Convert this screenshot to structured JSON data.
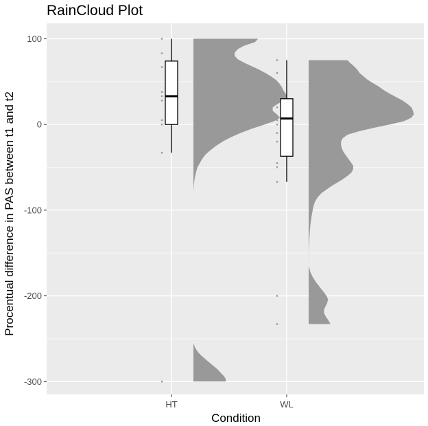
{
  "chart_data": {
    "type": "raincloud",
    "title": "RainCloud Plot",
    "xlabel": "Condition",
    "ylabel": "Procentual difference in PAS between t1 and t2",
    "categories": [
      "HT",
      "WL"
    ],
    "y_ticks": [
      100,
      0,
      -100,
      -200,
      -300
    ],
    "ylim": [
      -315,
      118
    ],
    "grid": true,
    "colors": {
      "panel": "#ebebeb",
      "grid": "#ffffff",
      "cloud": "#999999",
      "points": "#999999",
      "box_fill": "#ffffff",
      "box_stroke": "#000000"
    },
    "boxplots": [
      {
        "category": "HT",
        "whisker_low": -33,
        "q1": 0,
        "median": 33,
        "q3": 74,
        "whisker_high": 100
      },
      {
        "category": "WL",
        "whisker_low": -67,
        "q1": -37,
        "median": 7,
        "q3": 30,
        "whisker_high": 75
      }
    ],
    "points": [
      {
        "category": "HT",
        "values": [
          100,
          83,
          67,
          38,
          33,
          28,
          5,
          0,
          -33,
          -300
        ]
      },
      {
        "category": "WL",
        "values": [
          75,
          60,
          40,
          30,
          20,
          10,
          5,
          0,
          -10,
          -20,
          -45,
          -50,
          -67,
          -200,
          -233
        ]
      }
    ],
    "clouds": [
      {
        "category": "HT",
        "density": [
          [
            100,
            0.8
          ],
          [
            96,
            0.76
          ],
          [
            92,
            0.63
          ],
          [
            88,
            0.55
          ],
          [
            84,
            0.51
          ],
          [
            80,
            0.51
          ],
          [
            76,
            0.55
          ],
          [
            72,
            0.63
          ],
          [
            68,
            0.72
          ],
          [
            64,
            0.81
          ],
          [
            60,
            0.89
          ],
          [
            56,
            0.96
          ],
          [
            52,
            1.02
          ],
          [
            48,
            1.06
          ],
          [
            44,
            1.09
          ],
          [
            40,
            1.11
          ],
          [
            36,
            1.14
          ],
          [
            32,
            1.16
          ],
          [
            28,
            1.12
          ],
          [
            24,
            1.04
          ],
          [
            20,
            0.98
          ],
          [
            16,
            0.98
          ],
          [
            12,
            1.03
          ],
          [
            8,
            1.07
          ],
          [
            4,
            1.0
          ],
          [
            0,
            0.88
          ],
          [
            -5,
            0.72
          ],
          [
            -10,
            0.58
          ],
          [
            -15,
            0.46
          ],
          [
            -20,
            0.36
          ],
          [
            -25,
            0.28
          ],
          [
            -30,
            0.21
          ],
          [
            -35,
            0.15
          ],
          [
            -40,
            0.11
          ],
          [
            -45,
            0.08
          ],
          [
            -50,
            0.05
          ],
          [
            -55,
            0.035
          ],
          [
            -60,
            0.022
          ],
          [
            -65,
            0.013
          ],
          [
            -70,
            0.006
          ],
          [
            -75,
            0.002
          ],
          [
            -80,
            0
          ],
          [
            -255,
            0
          ],
          [
            -258,
            0.01
          ],
          [
            -262,
            0.03
          ],
          [
            -266,
            0.06
          ],
          [
            -270,
            0.1
          ],
          [
            -274,
            0.15
          ],
          [
            -278,
            0.2
          ],
          [
            -282,
            0.25
          ],
          [
            -286,
            0.3
          ],
          [
            -290,
            0.34
          ],
          [
            -294,
            0.38
          ],
          [
            -297,
            0.4
          ],
          [
            -300,
            0.4
          ]
        ]
      },
      {
        "category": "WL",
        "density": [
          [
            75,
            0.48
          ],
          [
            72,
            0.51
          ],
          [
            68,
            0.56
          ],
          [
            64,
            0.6
          ],
          [
            60,
            0.63
          ],
          [
            56,
            0.68
          ],
          [
            52,
            0.73
          ],
          [
            48,
            0.8
          ],
          [
            44,
            0.87
          ],
          [
            40,
            0.93
          ],
          [
            36,
            1.0
          ],
          [
            32,
            1.08
          ],
          [
            28,
            1.16
          ],
          [
            24,
            1.22
          ],
          [
            20,
            1.27
          ],
          [
            16,
            1.29
          ],
          [
            12,
            1.3
          ],
          [
            8,
            1.27
          ],
          [
            4,
            1.18
          ],
          [
            0,
            1.0
          ],
          [
            -4,
            0.8
          ],
          [
            -8,
            0.62
          ],
          [
            -12,
            0.48
          ],
          [
            -16,
            0.42
          ],
          [
            -20,
            0.4
          ],
          [
            -24,
            0.4
          ],
          [
            -28,
            0.41
          ],
          [
            -32,
            0.43
          ],
          [
            -36,
            0.46
          ],
          [
            -40,
            0.49
          ],
          [
            -44,
            0.52
          ],
          [
            -48,
            0.55
          ],
          [
            -52,
            0.55
          ],
          [
            -56,
            0.53
          ],
          [
            -60,
            0.48
          ],
          [
            -64,
            0.42
          ],
          [
            -68,
            0.35
          ],
          [
            -72,
            0.28
          ],
          [
            -76,
            0.22
          ],
          [
            -80,
            0.16
          ],
          [
            -85,
            0.11
          ],
          [
            -90,
            0.08
          ],
          [
            -95,
            0.06
          ],
          [
            -100,
            0.05
          ],
          [
            -108,
            0.035
          ],
          [
            -118,
            0.02
          ],
          [
            -128,
            0.012
          ],
          [
            -138,
            0.006
          ],
          [
            -148,
            0.002
          ],
          [
            -158,
            0.001
          ],
          [
            -165,
            0
          ],
          [
            -172,
            0.02
          ],
          [
            -178,
            0.05
          ],
          [
            -184,
            0.09
          ],
          [
            -190,
            0.14
          ],
          [
            -196,
            0.19
          ],
          [
            -200,
            0.22
          ],
          [
            -204,
            0.24
          ],
          [
            -208,
            0.23
          ],
          [
            -212,
            0.21
          ],
          [
            -216,
            0.19
          ],
          [
            -220,
            0.19
          ],
          [
            -224,
            0.21
          ],
          [
            -228,
            0.24
          ],
          [
            -233,
            0.27
          ]
        ]
      }
    ]
  }
}
